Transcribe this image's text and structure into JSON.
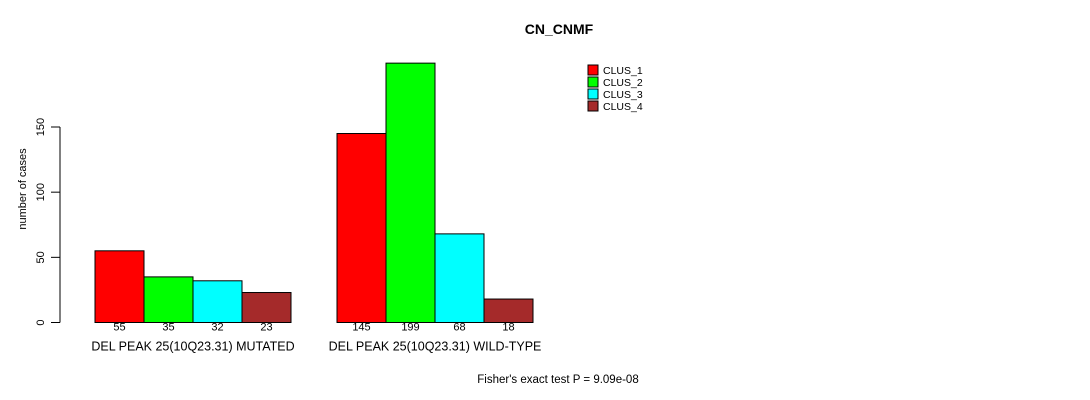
{
  "chart_data": {
    "type": "bar",
    "title": "CN_CNMF",
    "ylabel": "number of cases",
    "xlabel": "",
    "ylim": [
      0,
      150
    ],
    "yticks": [
      0,
      50,
      100,
      150
    ],
    "grid": false,
    "legend_position": "top-right",
    "series": [
      {
        "name": "CLUS_1",
        "color": "#FF0000"
      },
      {
        "name": "CLUS_2",
        "color": "#00FF00"
      },
      {
        "name": "CLUS_3",
        "color": "#00FFFF"
      },
      {
        "name": "CLUS_4",
        "color": "#A52A2A"
      }
    ],
    "categories": [
      "DEL PEAK 25(10Q23.31) MUTATED",
      "DEL PEAK 25(10Q23.31) WILD-TYPE"
    ],
    "groups": [
      {
        "label": "DEL PEAK 25(10Q23.31) MUTATED",
        "values": [
          55,
          35,
          32,
          23
        ]
      },
      {
        "label": "DEL PEAK 25(10Q23.31) WILD-TYPE",
        "values": [
          145,
          199,
          68,
          18
        ]
      }
    ],
    "bar_value_labels": true,
    "annotation": "Fisher's exact test P = 9.09e-08"
  }
}
